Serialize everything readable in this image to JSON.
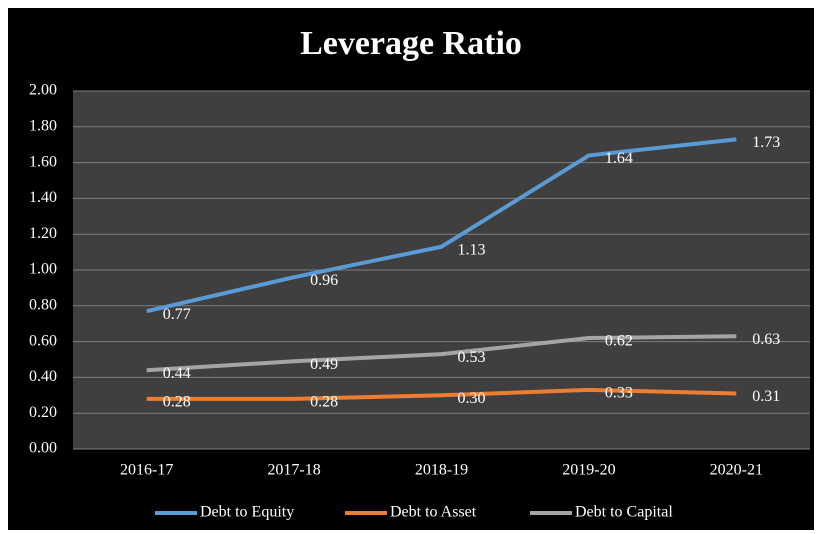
{
  "chart_data": {
    "type": "line",
    "title": "Leverage Ratio",
    "categories": [
      "2016-17",
      "2017-18",
      "2018-19",
      "2019-20",
      "2020-21"
    ],
    "series": [
      {
        "name": "Debt to Equity",
        "color": "#5b9bd5",
        "values": [
          0.77,
          0.96,
          1.13,
          1.64,
          1.73
        ],
        "value_labels": [
          "0.77",
          "0.96",
          "1.13",
          "1.64",
          "1.73"
        ]
      },
      {
        "name": "Debt to Asset",
        "color": "#ed7d31",
        "values": [
          0.28,
          0.28,
          0.3,
          0.33,
          0.31
        ],
        "value_labels": [
          "0.28",
          "0.28",
          "0.30",
          "0.33",
          "0.31"
        ]
      },
      {
        "name": "Debt to Capital",
        "color": "#a5a5a5",
        "values": [
          0.44,
          0.49,
          0.53,
          0.62,
          0.63
        ],
        "value_labels": [
          "0.44",
          "0.49",
          "0.53",
          "0.62",
          "0.63"
        ]
      }
    ],
    "ylim": [
      0,
      2
    ],
    "yticks": [
      {
        "value": 0,
        "label": "0.00"
      },
      {
        "value": 0.2,
        "label": "0.20"
      },
      {
        "value": 0.4,
        "label": "0.40"
      },
      {
        "value": 0.6,
        "label": "0.60"
      },
      {
        "value": 0.8,
        "label": "0.80"
      },
      {
        "value": 1,
        "label": "1.00"
      },
      {
        "value": 1.2,
        "label": "1.20"
      },
      {
        "value": 1.4,
        "label": "1.40"
      },
      {
        "value": 1.6,
        "label": "1.60"
      },
      {
        "value": 1.8,
        "label": "1.80"
      },
      {
        "value": 2,
        "label": "2.00"
      }
    ],
    "grid": true,
    "legend": "bottom"
  }
}
